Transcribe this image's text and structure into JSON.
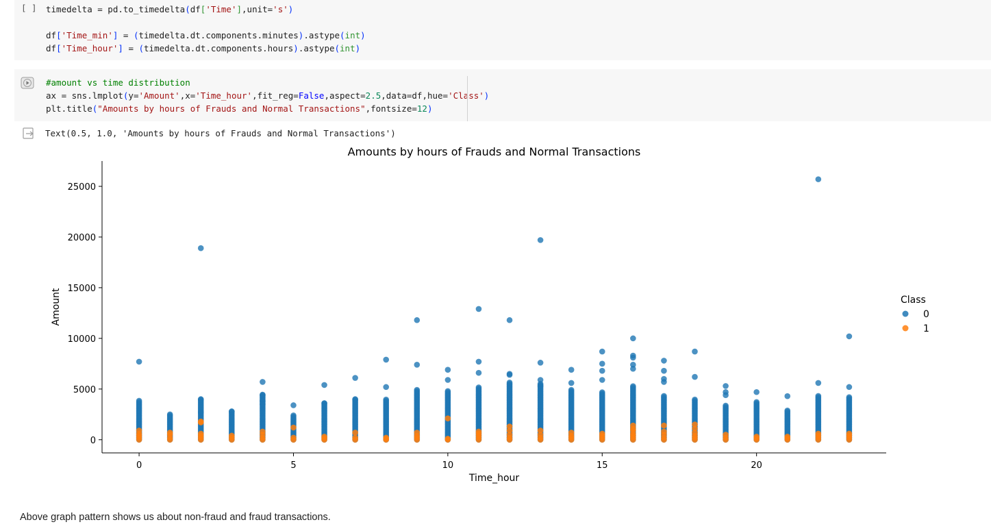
{
  "cell1": {
    "bracket": "[ ]",
    "lines": [
      [
        {
          "t": "timedelta = pd.to_timedelta",
          "c": ""
        },
        {
          "t": "(",
          "c": "k-p1"
        },
        {
          "t": "df",
          "c": ""
        },
        {
          "t": "[",
          "c": "k-p2"
        },
        {
          "t": "'Time'",
          "c": "k-str"
        },
        {
          "t": "]",
          "c": "k-p2"
        },
        {
          "t": ",unit=",
          "c": ""
        },
        {
          "t": "'s'",
          "c": "k-str"
        },
        {
          "t": ")",
          "c": "k-p1"
        }
      ],
      [],
      [
        {
          "t": "df",
          "c": ""
        },
        {
          "t": "[",
          "c": "k-p1"
        },
        {
          "t": "'Time_min'",
          "c": "k-str"
        },
        {
          "t": "]",
          "c": "k-p1"
        },
        {
          "t": " = ",
          "c": ""
        },
        {
          "t": "(",
          "c": "k-p1"
        },
        {
          "t": "timedelta.dt.components.minutes",
          "c": ""
        },
        {
          "t": ")",
          "c": "k-p1"
        },
        {
          "t": ".astype",
          "c": ""
        },
        {
          "t": "(",
          "c": "k-p1"
        },
        {
          "t": "int",
          "c": "k-p2"
        },
        {
          "t": ")",
          "c": "k-p1"
        }
      ],
      [
        {
          "t": "df",
          "c": ""
        },
        {
          "t": "[",
          "c": "k-p1"
        },
        {
          "t": "'Time_hour'",
          "c": "k-str"
        },
        {
          "t": "]",
          "c": "k-p1"
        },
        {
          "t": " = ",
          "c": ""
        },
        {
          "t": "(",
          "c": "k-p1"
        },
        {
          "t": "timedelta.dt.components.hours",
          "c": ""
        },
        {
          "t": ")",
          "c": "k-p1"
        },
        {
          "t": ".astype",
          "c": ""
        },
        {
          "t": "(",
          "c": "k-p1"
        },
        {
          "t": "int",
          "c": "k-p2"
        },
        {
          "t": ")",
          "c": "k-p1"
        }
      ]
    ]
  },
  "cell2": {
    "lines": [
      [
        {
          "t": "#amount vs time distribution",
          "c": "k-com"
        }
      ],
      [
        {
          "t": "ax = sns.lmplot",
          "c": ""
        },
        {
          "t": "(",
          "c": "k-p1"
        },
        {
          "t": "y=",
          "c": ""
        },
        {
          "t": "'Amount'",
          "c": "k-str"
        },
        {
          "t": ",x=",
          "c": ""
        },
        {
          "t": "'Time_hour'",
          "c": "k-str"
        },
        {
          "t": ",fit_reg=",
          "c": ""
        },
        {
          "t": "False",
          "c": "k-kw"
        },
        {
          "t": ",aspect=",
          "c": ""
        },
        {
          "t": "2.5",
          "c": "k-num"
        },
        {
          "t": ",data=df,hue=",
          "c": ""
        },
        {
          "t": "'Class'",
          "c": "k-str"
        },
        {
          "t": ")",
          "c": "k-p1"
        }
      ],
      [
        {
          "t": "plt.title",
          "c": ""
        },
        {
          "t": "(",
          "c": "k-p1"
        },
        {
          "t": "\"Amounts by hours of Frauds and Normal Transactions\"",
          "c": "k-str"
        },
        {
          "t": ",fontsize=",
          "c": ""
        },
        {
          "t": "12",
          "c": "k-num"
        },
        {
          "t": ")",
          "c": "k-p1"
        }
      ]
    ]
  },
  "output": {
    "text": "Text(0.5, 1.0, 'Amounts by hours of Frauds and Normal Transactions')"
  },
  "chart_data": {
    "type": "scatter",
    "title": "Amounts by hours of Frauds and Normal Transactions",
    "xlabel": "Time_hour",
    "ylabel": "Amount",
    "xlim": [
      -1.2,
      24.2
    ],
    "ylim": [
      -1300,
      27500
    ],
    "xticks": [
      0,
      5,
      10,
      15,
      20
    ],
    "yticks": [
      0,
      5000,
      10000,
      15000,
      20000,
      25000
    ],
    "legend_title": "Class",
    "legend_position": "right",
    "grid": false,
    "series": [
      {
        "name": "0",
        "color": "#1f77b4",
        "column_max": [
          3900,
          2500,
          4000,
          2800,
          4500,
          2400,
          3600,
          4000,
          4000,
          5000,
          4900,
          5200,
          5700,
          5600,
          5000,
          4700,
          5300,
          4400,
          4000,
          3400,
          3800,
          2900,
          4400,
          4200
        ],
        "outliers": [
          [
            0,
            7700
          ],
          [
            1,
            2500
          ],
          [
            2,
            18900
          ],
          [
            2,
            4000
          ],
          [
            2,
            2700
          ],
          [
            3,
            2800
          ],
          [
            4,
            5700
          ],
          [
            4,
            4400
          ],
          [
            4,
            3800
          ],
          [
            4,
            3500
          ],
          [
            5,
            3400
          ],
          [
            6,
            5400
          ],
          [
            6,
            3600
          ],
          [
            7,
            6100
          ],
          [
            7,
            4000
          ],
          [
            8,
            7900
          ],
          [
            8,
            5200
          ],
          [
            9,
            11800
          ],
          [
            9,
            7400
          ],
          [
            10,
            6900
          ],
          [
            10,
            5900
          ],
          [
            11,
            12900
          ],
          [
            11,
            7700
          ],
          [
            11,
            6600
          ],
          [
            12,
            11800
          ],
          [
            12,
            6500
          ],
          [
            12,
            6400
          ],
          [
            13,
            19700
          ],
          [
            13,
            7600
          ],
          [
            13,
            5900
          ],
          [
            13,
            5300
          ],
          [
            14,
            6900
          ],
          [
            14,
            5600
          ],
          [
            15,
            8700
          ],
          [
            15,
            7500
          ],
          [
            15,
            6800
          ],
          [
            15,
            5900
          ],
          [
            16,
            10000
          ],
          [
            16,
            8300
          ],
          [
            16,
            8100
          ],
          [
            16,
            7400
          ],
          [
            16,
            7000
          ],
          [
            17,
            7800
          ],
          [
            17,
            6800
          ],
          [
            17,
            6000
          ],
          [
            17,
            5700
          ],
          [
            18,
            8700
          ],
          [
            18,
            6200
          ],
          [
            19,
            5300
          ],
          [
            19,
            4700
          ],
          [
            19,
            4400
          ],
          [
            20,
            4700
          ],
          [
            21,
            4300
          ],
          [
            22,
            25700
          ],
          [
            22,
            5600
          ],
          [
            23,
            10200
          ],
          [
            23,
            5200
          ]
        ]
      },
      {
        "name": "1",
        "color": "#ff7f0e",
        "points": [
          [
            0,
            0
          ],
          [
            0,
            200
          ],
          [
            0,
            400
          ],
          [
            0,
            600
          ],
          [
            0,
            900
          ],
          [
            1,
            0
          ],
          [
            1,
            200
          ],
          [
            1,
            500
          ],
          [
            1,
            700
          ],
          [
            2,
            0
          ],
          [
            2,
            200
          ],
          [
            2,
            400
          ],
          [
            2,
            600
          ],
          [
            2,
            1700
          ],
          [
            2,
            1800
          ],
          [
            3,
            0
          ],
          [
            3,
            200
          ],
          [
            3,
            400
          ],
          [
            4,
            0
          ],
          [
            4,
            200
          ],
          [
            4,
            500
          ],
          [
            4,
            800
          ],
          [
            5,
            0
          ],
          [
            5,
            200
          ],
          [
            5,
            1200
          ],
          [
            6,
            0
          ],
          [
            6,
            150
          ],
          [
            6,
            300
          ],
          [
            7,
            0
          ],
          [
            7,
            200
          ],
          [
            7,
            700
          ],
          [
            8,
            0
          ],
          [
            8,
            100
          ],
          [
            8,
            200
          ],
          [
            9,
            0
          ],
          [
            9,
            200
          ],
          [
            9,
            400
          ],
          [
            9,
            700
          ],
          [
            10,
            0
          ],
          [
            10,
            100
          ],
          [
            10,
            2100
          ],
          [
            11,
            0
          ],
          [
            11,
            200
          ],
          [
            11,
            400
          ],
          [
            11,
            600
          ],
          [
            11,
            800
          ],
          [
            12,
            0
          ],
          [
            12,
            200
          ],
          [
            12,
            500
          ],
          [
            12,
            900
          ],
          [
            12,
            1300
          ],
          [
            13,
            0
          ],
          [
            13,
            200
          ],
          [
            13,
            500
          ],
          [
            13,
            900
          ],
          [
            14,
            0
          ],
          [
            14,
            200
          ],
          [
            14,
            400
          ],
          [
            14,
            700
          ],
          [
            15,
            0
          ],
          [
            15,
            200
          ],
          [
            15,
            400
          ],
          [
            15,
            600
          ],
          [
            16,
            0
          ],
          [
            16,
            200
          ],
          [
            16,
            400
          ],
          [
            16,
            600
          ],
          [
            16,
            900
          ],
          [
            16,
            1100
          ],
          [
            16,
            1400
          ],
          [
            17,
            0
          ],
          [
            17,
            200
          ],
          [
            17,
            500
          ],
          [
            17,
            800
          ],
          [
            17,
            1400
          ],
          [
            18,
            0
          ],
          [
            18,
            200
          ],
          [
            18,
            400
          ],
          [
            18,
            700
          ],
          [
            18,
            1100
          ],
          [
            18,
            1500
          ],
          [
            19,
            0
          ],
          [
            19,
            200
          ],
          [
            19,
            500
          ],
          [
            20,
            0
          ],
          [
            20,
            150
          ],
          [
            20,
            300
          ],
          [
            21,
            0
          ],
          [
            21,
            150
          ],
          [
            21,
            300
          ],
          [
            22,
            0
          ],
          [
            22,
            200
          ],
          [
            22,
            400
          ],
          [
            22,
            600
          ],
          [
            23,
            0
          ],
          [
            23,
            200
          ],
          [
            23,
            400
          ],
          [
            23,
            600
          ]
        ]
      }
    ]
  },
  "markdown": {
    "text": "Above graph pattern shows us about non-fraud and fraud transactions."
  }
}
